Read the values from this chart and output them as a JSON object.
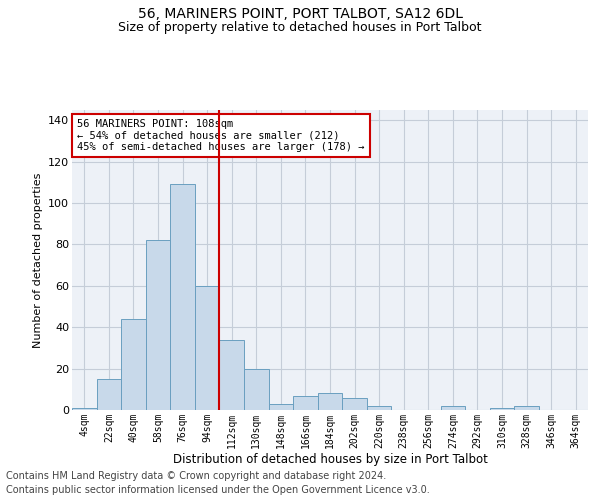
{
  "title": "56, MARINERS POINT, PORT TALBOT, SA12 6DL",
  "subtitle": "Size of property relative to detached houses in Port Talbot",
  "xlabel": "Distribution of detached houses by size in Port Talbot",
  "ylabel": "Number of detached properties",
  "bar_labels": [
    "4sqm",
    "22sqm",
    "40sqm",
    "58sqm",
    "76sqm",
    "94sqm",
    "112sqm",
    "130sqm",
    "148sqm",
    "166sqm",
    "184sqm",
    "202sqm",
    "220sqm",
    "238sqm",
    "256sqm",
    "274sqm",
    "292sqm",
    "310sqm",
    "328sqm",
    "346sqm",
    "364sqm"
  ],
  "bar_values": [
    1,
    15,
    44,
    82,
    109,
    60,
    34,
    20,
    3,
    7,
    8,
    6,
    2,
    0,
    0,
    2,
    0,
    1,
    2,
    0,
    0
  ],
  "bar_color": "#c8d9ea",
  "bar_edge_color": "#6a9fc0",
  "vline_color": "#cc0000",
  "annotation_text": "56 MARINERS POINT: 108sqm\n← 54% of detached houses are smaller (212)\n45% of semi-detached houses are larger (178) →",
  "annotation_box_color": "#ffffff",
  "annotation_box_edge": "#cc0000",
  "annotation_fontsize": 7.5,
  "ylim": [
    0,
    145
  ],
  "yticks": [
    0,
    20,
    40,
    60,
    80,
    100,
    120,
    140
  ],
  "grid_color": "#c5cdd8",
  "bg_color": "#edf1f7",
  "footer1": "Contains HM Land Registry data © Crown copyright and database right 2024.",
  "footer2": "Contains public sector information licensed under the Open Government Licence v3.0.",
  "title_fontsize": 10,
  "subtitle_fontsize": 9,
  "xlabel_fontsize": 8.5,
  "ylabel_fontsize": 8,
  "footer_fontsize": 7
}
